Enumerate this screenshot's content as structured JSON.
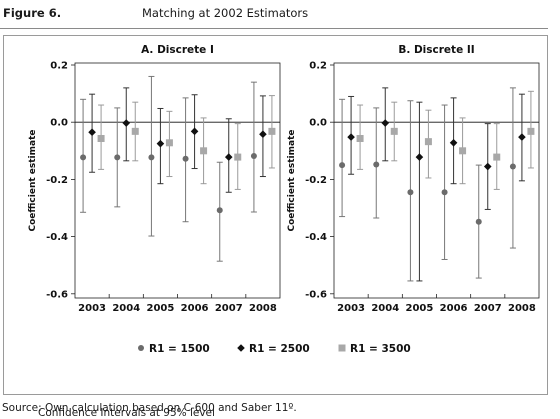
{
  "figure": {
    "number": "Figure 6.",
    "title": "Matching at 2002 Estimators"
  },
  "note": "Confidence Intervals at 95% level",
  "source": "Source: Own calculation based on C-600 and Saber 11º.",
  "chart_data": [
    {
      "type": "scatter",
      "title": "A. Discrete I",
      "xlabel": "",
      "ylabel": "Coefficient estimate",
      "categories": [
        "2003",
        "2004",
        "2005",
        "2006",
        "2007",
        "2008"
      ],
      "yticks": [
        "0.2",
        "0.0",
        "-0.2",
        "-0.4",
        "-0.6"
      ],
      "ylim": [
        -0.62,
        0.2
      ],
      "zero_line": true,
      "grid": false,
      "series": [
        {
          "name": "R1 = 1500",
          "marker": "circle",
          "color": "#6b6b6b",
          "values": [
            -0.123,
            -0.123,
            -0.123,
            -0.128,
            -0.308,
            -0.118
          ],
          "lower": [
            -0.315,
            -0.296,
            -0.398,
            -0.348,
            -0.486,
            -0.314
          ],
          "upper": [
            0.08,
            0.05,
            0.16,
            0.085,
            -0.14,
            0.14
          ]
        },
        {
          "name": "R1 = 2500",
          "marker": "diamond",
          "color": "#111111",
          "values": [
            -0.035,
            -0.003,
            -0.075,
            -0.032,
            -0.122,
            -0.042
          ],
          "lower": [
            -0.175,
            -0.135,
            -0.215,
            -0.162,
            -0.245,
            -0.19
          ],
          "upper": [
            0.098,
            0.12,
            0.048,
            0.096,
            0.012,
            0.092
          ]
        },
        {
          "name": "R1 = 3500",
          "marker": "square",
          "color": "#a8a8a8",
          "values": [
            -0.057,
            -0.032,
            -0.072,
            -0.1,
            -0.122,
            -0.032
          ],
          "lower": [
            -0.165,
            -0.135,
            -0.19,
            -0.215,
            -0.235,
            -0.16
          ],
          "upper": [
            0.06,
            0.07,
            0.038,
            0.015,
            -0.005,
            0.093
          ]
        }
      ]
    },
    {
      "type": "scatter",
      "title": "B. Discrete II",
      "xlabel": "",
      "ylabel": "Coefficient estimate",
      "categories": [
        "2003",
        "2004",
        "2005",
        "2006",
        "2007",
        "2008"
      ],
      "yticks": [
        "0.2",
        "0.0",
        "-0.2",
        "-0.4",
        "-0.6"
      ],
      "ylim": [
        -0.62,
        0.2
      ],
      "zero_line": true,
      "grid": false,
      "series": [
        {
          "name": "R1 = 1500",
          "marker": "circle",
          "color": "#6b6b6b",
          "values": [
            -0.15,
            -0.148,
            -0.245,
            -0.245,
            -0.348,
            -0.155
          ],
          "lower": [
            -0.33,
            -0.335,
            -0.555,
            -0.48,
            -0.545,
            -0.44
          ],
          "upper": [
            0.08,
            0.05,
            0.075,
            0.06,
            -0.15,
            0.12
          ]
        },
        {
          "name": "R1 = 2500",
          "marker": "diamond",
          "color": "#111111",
          "values": [
            -0.052,
            -0.003,
            -0.122,
            -0.072,
            -0.155,
            -0.052
          ],
          "lower": [
            -0.182,
            -0.135,
            -0.555,
            -0.215,
            -0.305,
            -0.205
          ],
          "upper": [
            0.09,
            0.12,
            0.07,
            0.085,
            -0.005,
            0.098
          ]
        },
        {
          "name": "R1 = 3500",
          "marker": "square",
          "color": "#a8a8a8",
          "values": [
            -0.057,
            -0.032,
            -0.068,
            -0.1,
            -0.122,
            -0.032
          ],
          "lower": [
            -0.165,
            -0.135,
            -0.195,
            -0.215,
            -0.235,
            -0.16
          ],
          "upper": [
            0.06,
            0.07,
            0.042,
            0.015,
            -0.005,
            0.108
          ]
        }
      ]
    }
  ],
  "legend": {
    "placement": "bottom-center",
    "items": [
      {
        "label": "R1 = 1500",
        "marker": "circle",
        "color": "#6b6b6b"
      },
      {
        "label": "R1 = 2500",
        "marker": "diamond",
        "color": "#111111"
      },
      {
        "label": "R1 = 3500",
        "marker": "square",
        "color": "#a8a8a8"
      }
    ]
  }
}
